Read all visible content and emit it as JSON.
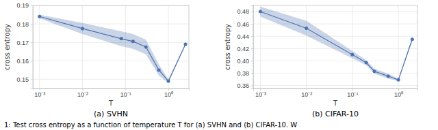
{
  "chart_data": [
    {
      "type": "line",
      "title": "(a) SVHN",
      "xlabel": "T",
      "ylabel": "cross entropy",
      "x": [
        0.001,
        0.01,
        0.08,
        0.15,
        0.3,
        0.6,
        1.0,
        2.5
      ],
      "series": [
        {
          "color": "#4c72b0",
          "marker": "circle",
          "values": [
            0.184,
            0.1775,
            0.172,
            0.1705,
            0.1675,
            0.155,
            0.149,
            0.169
          ],
          "error": [
            0.001,
            0.003,
            0.004,
            0.004,
            0.004,
            0.003,
            0.001,
            0.0005
          ]
        }
      ],
      "xlim": [
        0.0007,
        3
      ],
      "ylim": [
        0.145,
        0.19
      ],
      "xticks": [
        {
          "value": 0.001,
          "label": "10⁻³"
        },
        {
          "value": 0.01,
          "label": "10⁻²"
        },
        {
          "value": 0.1,
          "label": "10⁻¹"
        },
        {
          "value": 1,
          "label": "10⁰"
        }
      ],
      "yticks": [
        0.15,
        0.16,
        0.17,
        0.18,
        0.19
      ],
      "log": "x",
      "grid": true
    },
    {
      "type": "line",
      "title": "(b) CIFAR-10",
      "xlabel": "T",
      "ylabel": "cross entropy",
      "x": [
        0.001,
        0.01,
        0.1,
        0.2,
        0.3,
        0.6,
        1.0,
        2.0
      ],
      "series": [
        {
          "color": "#4c72b0",
          "marker": "circle",
          "values": [
            0.48,
            0.453,
            0.41,
            0.397,
            0.383,
            0.375,
            0.369,
            0.435
          ],
          "error": [
            0.008,
            0.012,
            0.006,
            0.004,
            0.004,
            0.004,
            0.002,
            0.003
          ]
        }
      ],
      "xlim": [
        0.0007,
        2.6
      ],
      "ylim": [
        0.355,
        0.49
      ],
      "xticks": [
        {
          "value": 0.001,
          "label": "10⁻³"
        },
        {
          "value": 0.01,
          "label": "10⁻²"
        },
        {
          "value": 0.1,
          "label": "10⁻¹"
        },
        {
          "value": 1,
          "label": "10⁰"
        }
      ],
      "yticks": [
        0.36,
        0.38,
        {
          "value": 0.4,
          "label": "0.40"
        },
        0.42,
        0.44,
        0.46,
        0.48
      ],
      "log": "x",
      "grid": true
    }
  ],
  "caption": "1: Test cross entropy as a function of temperature T for (a) SVHN and (b) CIFAR-10. W"
}
